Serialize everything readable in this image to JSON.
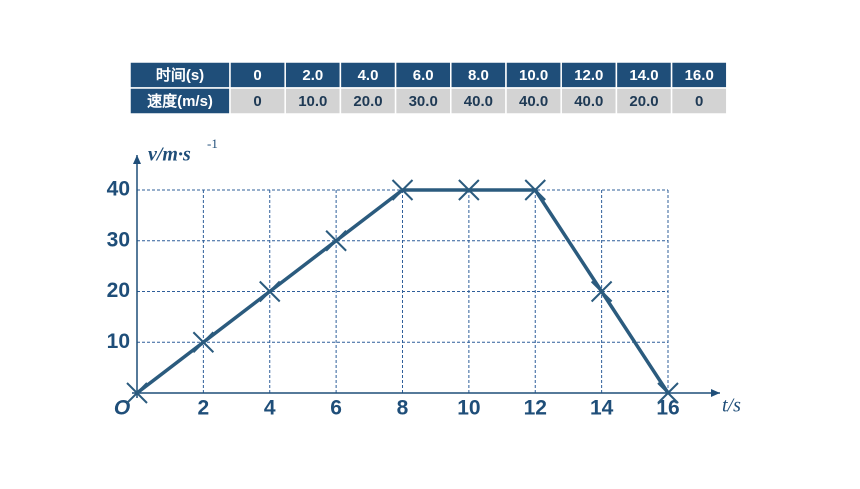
{
  "table": {
    "rows": [
      [
        "时间(s)",
        "0",
        "2.0",
        "4.0",
        "6.0",
        "8.0",
        "10.0",
        "12.0",
        "14.0",
        "16.0"
      ],
      [
        "速度(m/s)",
        "0",
        "10.0",
        "20.0",
        "30.0",
        "40.0",
        "40.0",
        "40.0",
        "20.0",
        "0"
      ]
    ]
  },
  "chart_data": {
    "type": "line",
    "y_label": "v/m·s",
    "y_label_sup": "-1",
    "x_label": "t/s",
    "origin_label": "O",
    "x": [
      0,
      2,
      4,
      6,
      8,
      10,
      12,
      14,
      16
    ],
    "series": [
      {
        "color": "#2b5b7e",
        "values": [
          0,
          10,
          20,
          30,
          40,
          40,
          40,
          20,
          0
        ]
      }
    ],
    "xlim": [
      0,
      16
    ],
    "xticks": [
      2,
      4,
      6,
      8,
      10,
      12,
      14,
      16
    ],
    "ylim": [
      0,
      40
    ],
    "yticks": [
      10,
      20,
      30,
      40
    ],
    "grid": true,
    "markers": "x"
  }
}
